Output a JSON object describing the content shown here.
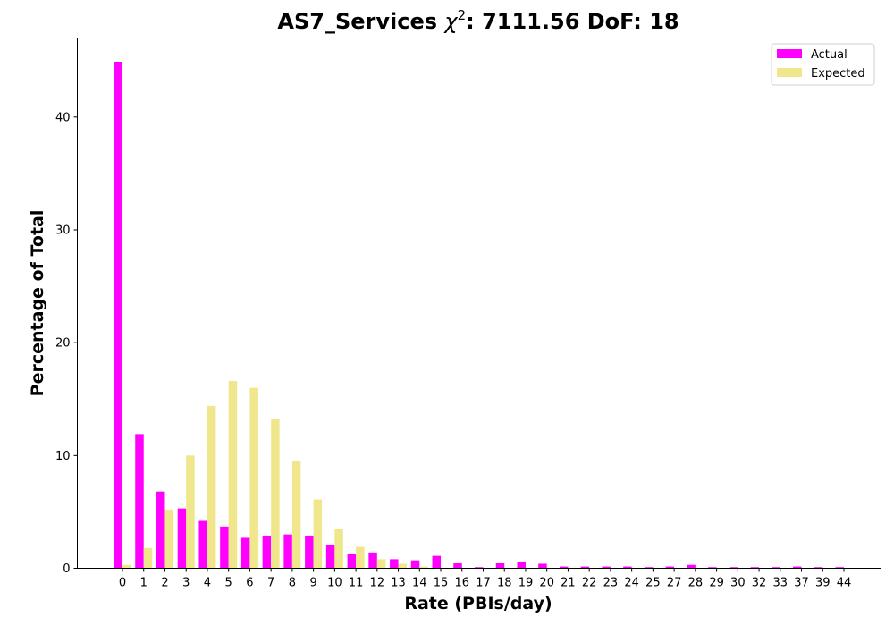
{
  "chart_data": {
    "type": "bar",
    "title": "AS7_Services",
    "title_stat": "7111.56",
    "title_dof": "18",
    "xlabel": "Rate (PBIs/day)",
    "ylabel": "Percentage of Total",
    "ylim": [
      0,
      47
    ],
    "yticks": [
      0,
      10,
      20,
      30,
      40
    ],
    "legend_position": "top-right",
    "grid": false,
    "categories": [
      "0",
      "1",
      "2",
      "3",
      "4",
      "5",
      "6",
      "7",
      "8",
      "9",
      "10",
      "11",
      "12",
      "13",
      "14",
      "15",
      "16",
      "17",
      "18",
      "19",
      "20",
      "21",
      "22",
      "23",
      "24",
      "25",
      "27",
      "28",
      "29",
      "30",
      "32",
      "33",
      "37",
      "39",
      "44"
    ],
    "series": [
      {
        "name": "Actual",
        "color": "#ff00ff",
        "values": [
          44.9,
          11.9,
          6.8,
          5.3,
          4.2,
          3.7,
          2.7,
          2.9,
          3.0,
          2.9,
          2.1,
          1.3,
          1.4,
          0.8,
          0.7,
          1.1,
          0.5,
          0.1,
          0.5,
          0.6,
          0.4,
          0.15,
          0.15,
          0.15,
          0.15,
          0.1,
          0.15,
          0.3,
          0.1,
          0.1,
          0.1,
          0.1,
          0.15,
          0.1,
          0.1
        ]
      },
      {
        "name": "Expected",
        "color": "#f0e68c",
        "values": [
          0.3,
          1.8,
          5.2,
          10.0,
          14.4,
          16.6,
          16.0,
          13.2,
          9.5,
          6.1,
          3.5,
          1.9,
          0.8,
          0.4,
          0.15,
          0.05,
          0.02,
          0.01,
          0,
          0,
          0,
          0,
          0,
          0,
          0,
          0,
          0,
          0,
          0,
          0,
          0,
          0,
          0,
          0,
          0
        ]
      }
    ]
  }
}
